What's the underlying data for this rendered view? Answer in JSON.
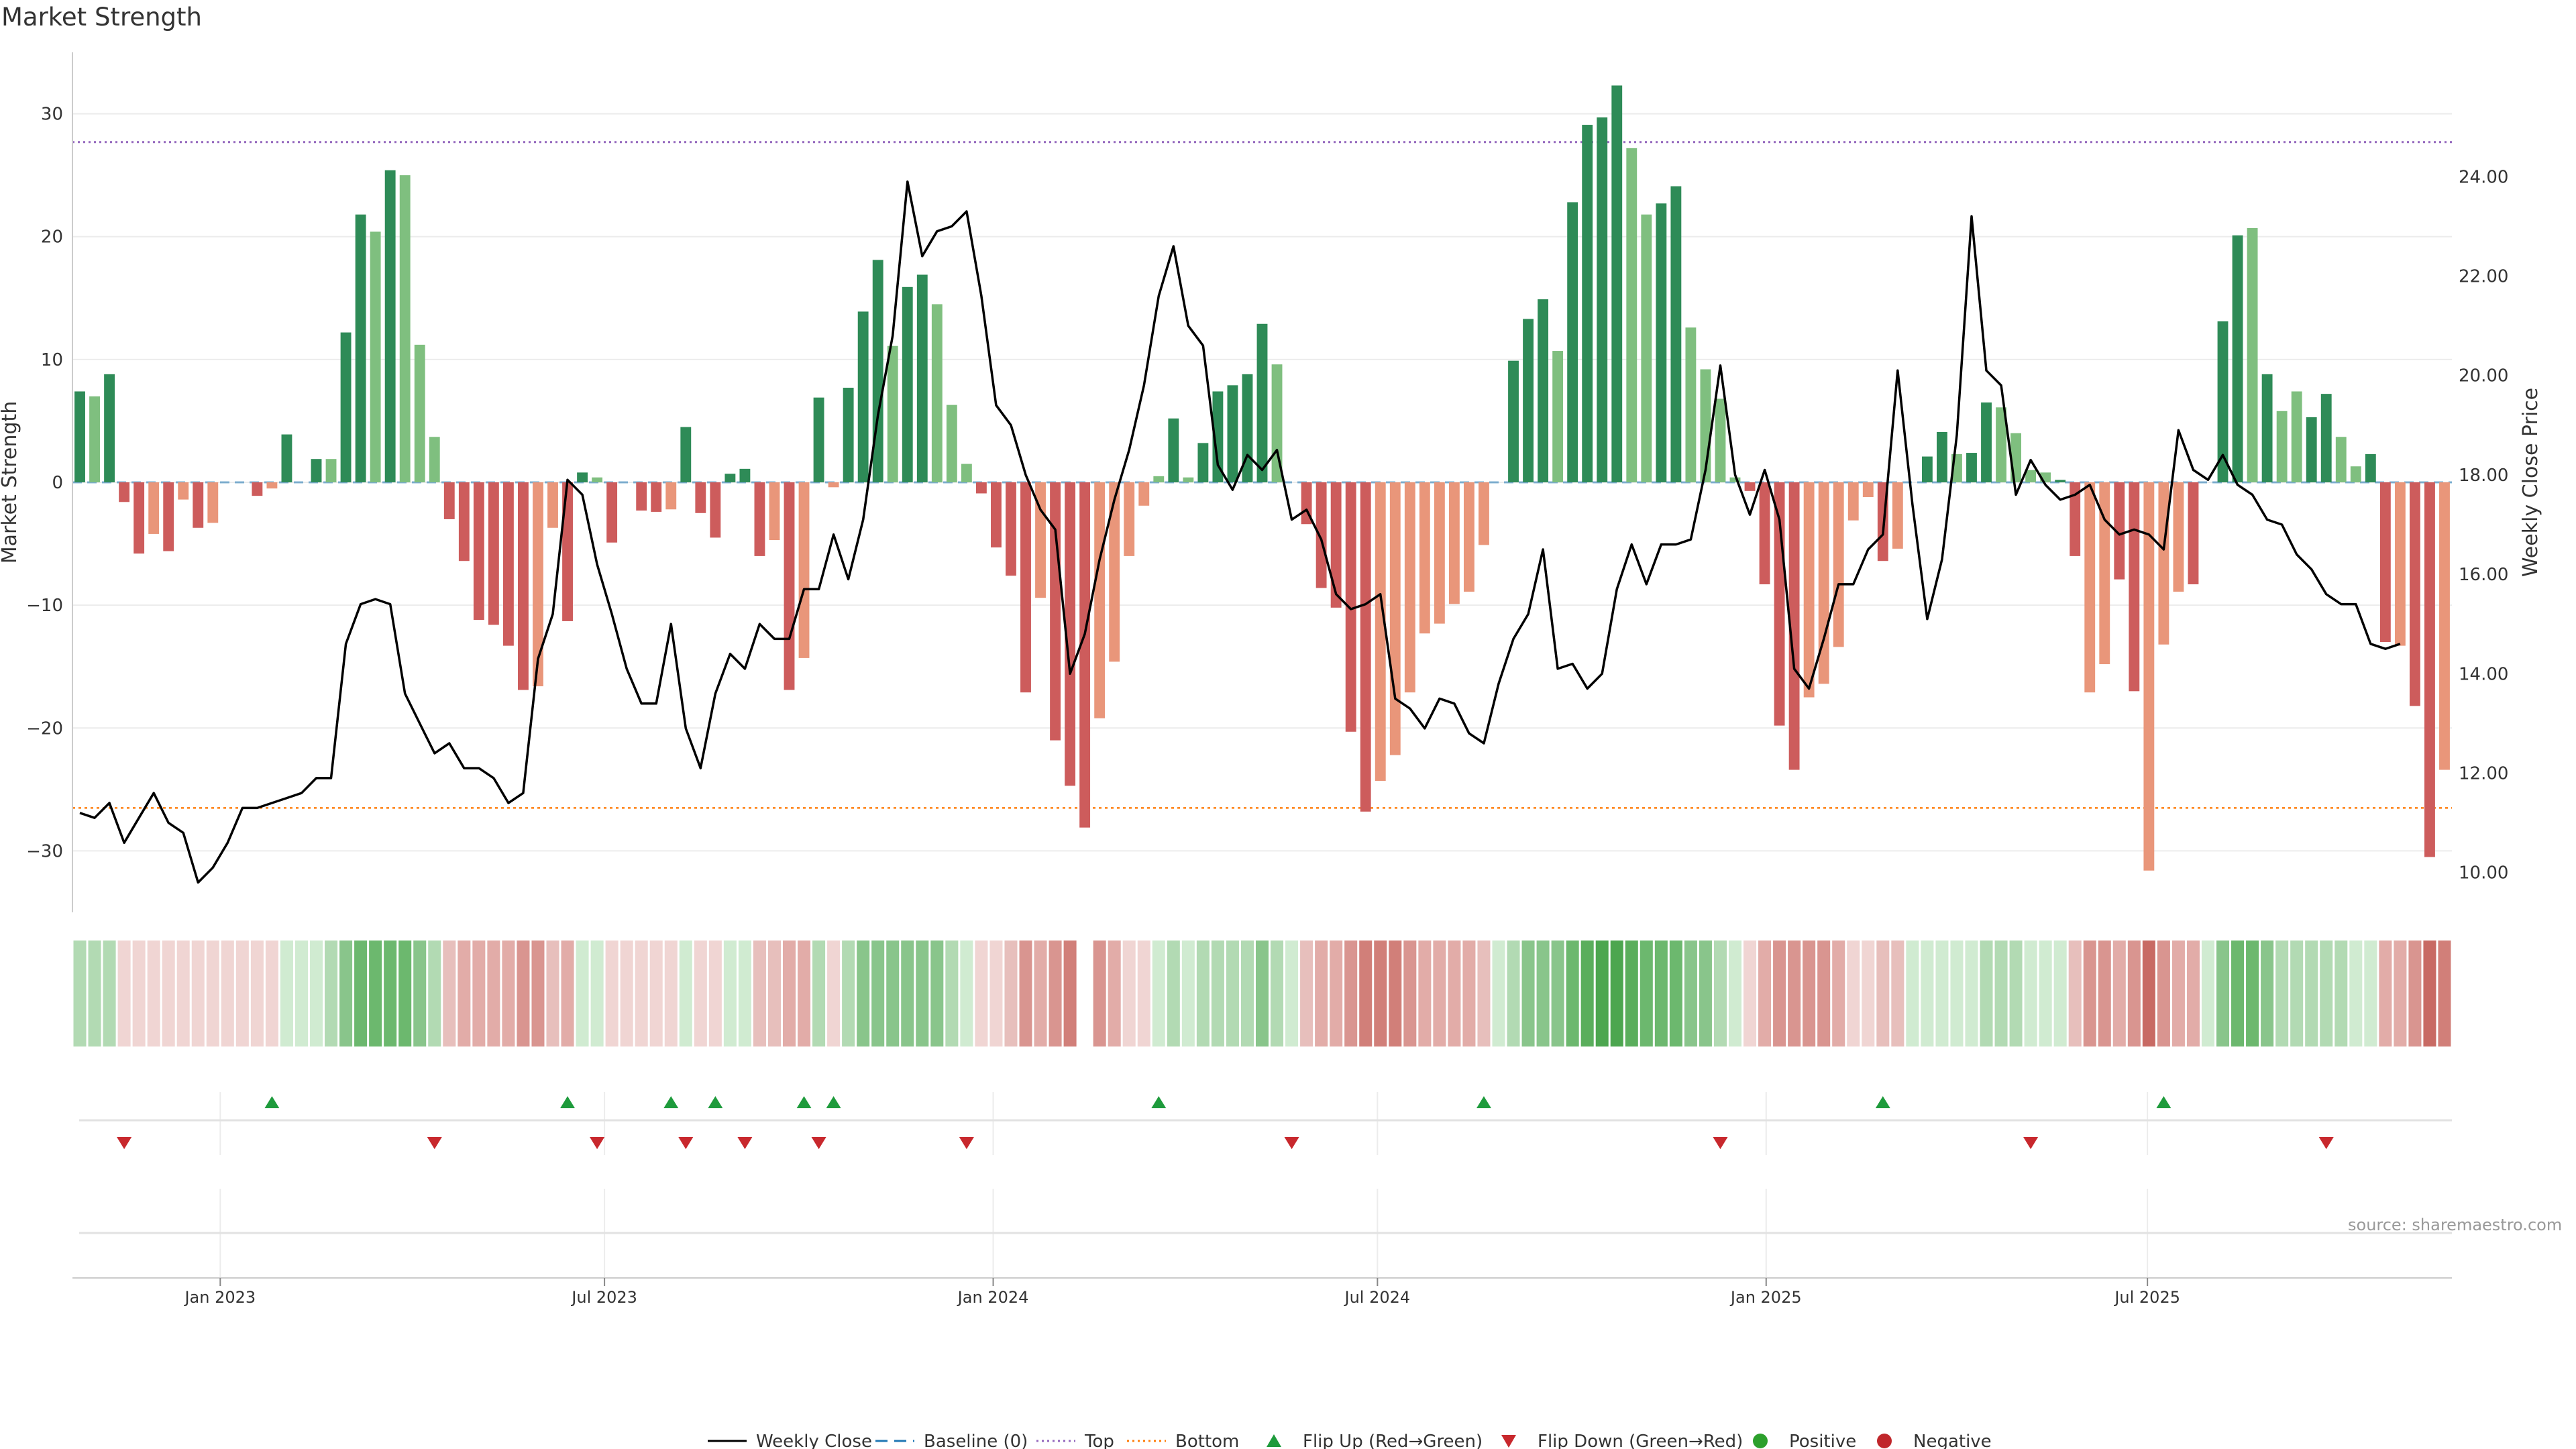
{
  "colors": {
    "strong_green": "#2e8b57",
    "light_green": "#7fbf7f",
    "strong_red": "#cd5c5c",
    "light_red": "#e9967a",
    "price_line": "#000000",
    "baseline": "#1f77b4",
    "top": "#9467bd",
    "bottom": "#ff7f0e",
    "flip_up": "#1e9b3c",
    "flip_down": "#c8282d",
    "positive": "#2ca02c",
    "negative": "#c0262b"
  },
  "chart_data": {
    "type": "bar+line",
    "title": "Market Strength",
    "source": "source: sharemaestro.com",
    "ylabel": "Market Strength",
    "y2label": "Weekly Close Price",
    "ylim": [
      -35,
      35
    ],
    "y2lim": [
      9.2,
      26.5
    ],
    "yticks": [
      "30",
      "20",
      "10",
      "0",
      "−10",
      "−20",
      "−30"
    ],
    "ytick_values": [
      30,
      20,
      10,
      0,
      -10,
      -20,
      -30
    ],
    "y2ticks": [
      "24.00",
      "22.00",
      "20.00",
      "18.00",
      "16.00",
      "14.00",
      "12.00",
      "10.00"
    ],
    "y2tick_values": [
      24,
      22,
      20,
      18,
      16,
      14,
      12,
      10
    ],
    "x_start": "2022-10-24",
    "x_end": "2025-11-10",
    "x_unit": "weeks since first bar",
    "xticks": [
      {
        "label": "Jan 2023",
        "week": 10
      },
      {
        "label": "Jul 2023",
        "week": 36
      },
      {
        "label": "Jan 2024",
        "week": 62.3
      },
      {
        "label": "Jul 2024",
        "week": 88.3
      },
      {
        "label": "Jan 2025",
        "week": 114.6
      },
      {
        "label": "Jul 2025",
        "week": 140.4
      }
    ],
    "top_line": 27.7,
    "bottom_line": -26.5,
    "strength": [
      7.4,
      7,
      8.8,
      -1.6,
      -5.8,
      -4.2,
      -5.6,
      -1.4,
      -3.7,
      -3.3,
      0,
      0,
      -1.1,
      -0.5,
      3.9,
      0,
      1.9,
      1.9,
      12.2,
      21.8,
      20.4,
      25.4,
      25,
      11.2,
      3.7,
      -3,
      -6.4,
      -11.2,
      -11.6,
      -13.3,
      -16.9,
      -16.6,
      -3.7,
      -11.3,
      0.8,
      0.4,
      -4.9,
      0,
      -2.3,
      -2.4,
      -2.2,
      4.5,
      -2.5,
      -4.5,
      0.7,
      1.1,
      -6,
      -4.7,
      -16.9,
      -14.3,
      6.9,
      -0.4,
      7.7,
      13.9,
      18.1,
      11.1,
      15.9,
      16.9,
      14.5,
      6.3,
      1.5,
      -0.9,
      -5.3,
      -7.6,
      -17.1,
      -9.4,
      -21,
      -24.7,
      -28.1,
      -19.2,
      -14.6,
      -6,
      -1.9,
      0.5,
      5.2,
      0.4,
      3.2,
      7.4,
      7.9,
      8.8,
      12.9,
      9.6,
      0,
      -3.4,
      -8.6,
      -10.2,
      -20.3,
      -26.8,
      -24.3,
      -22.2,
      -17.1,
      -12.3,
      -11.5,
      -9.9,
      -8.9,
      -5.1,
      0,
      9.9,
      13.3,
      14.9,
      10.7,
      22.8,
      29.1,
      29.7,
      32.3,
      27.2,
      21.8,
      22.7,
      24.1,
      12.6,
      9.2,
      6.8,
      0.4,
      -0.7,
      -8.3,
      -19.8,
      -23.4,
      -17.5,
      -16.4,
      -13.4,
      -3.1,
      -1.2,
      -6.4,
      -5.4,
      0,
      2.1,
      4.1,
      2.3,
      2.4,
      6.5,
      6.1,
      4,
      1,
      0.8,
      0.2,
      -6,
      -17.1,
      -14.8,
      -7.9,
      -17,
      -31.6,
      -13.2,
      -8.9,
      -8.3,
      0,
      13.1,
      20.1,
      20.7,
      8.8,
      5.8,
      7.4,
      5.3,
      7.2,
      3.7,
      1.3,
      2.3,
      -13,
      -13.3,
      -18.2,
      -30.5,
      -23.4
    ],
    "strength_shade": [
      "strong",
      "light",
      "strong",
      "strong",
      "strong",
      "light",
      "strong",
      "light",
      "strong",
      "light",
      "strong",
      "strong",
      "strong",
      "light",
      "strong",
      "strong",
      "strong",
      "light",
      "strong",
      "strong",
      "light",
      "strong",
      "light",
      "light",
      "light",
      "strong",
      "strong",
      "strong",
      "strong",
      "strong",
      "strong",
      "light",
      "light",
      "strong",
      "strong",
      "light",
      "strong",
      "strong",
      "strong",
      "strong",
      "light",
      "strong",
      "strong",
      "strong",
      "strong",
      "strong",
      "strong",
      "light",
      "strong",
      "light",
      "strong",
      "light",
      "strong",
      "strong",
      "strong",
      "light",
      "strong",
      "strong",
      "light",
      "light",
      "light",
      "strong",
      "strong",
      "strong",
      "strong",
      "light",
      "strong",
      "strong",
      "strong",
      "light",
      "light",
      "light",
      "light",
      "light",
      "strong",
      "light",
      "strong",
      "strong",
      "strong",
      "strong",
      "strong",
      "light",
      "strong",
      "strong",
      "strong",
      "strong",
      "strong",
      "strong",
      "light",
      "light",
      "light",
      "light",
      "light",
      "light",
      "light",
      "light",
      "light",
      "strong",
      "strong",
      "strong",
      "light",
      "strong",
      "strong",
      "strong",
      "strong",
      "light",
      "light",
      "strong",
      "strong",
      "light",
      "light",
      "light",
      "light",
      "strong",
      "strong",
      "strong",
      "strong",
      "light",
      "light",
      "light",
      "light",
      "light",
      "strong",
      "light",
      "strong",
      "strong",
      "strong",
      "light",
      "strong",
      "strong",
      "light",
      "light",
      "light",
      "light",
      "strong",
      "strong",
      "light",
      "light",
      "strong",
      "strong",
      "light",
      "light",
      "light",
      "strong",
      "strong",
      "strong",
      "strong",
      "light",
      "strong",
      "light",
      "light",
      "strong",
      "strong",
      "light",
      "light",
      "strong",
      "strong",
      "light",
      "strong",
      "strong",
      "light"
    ],
    "price_x": [
      0,
      1,
      2,
      3,
      4,
      5,
      6,
      7,
      8,
      9,
      10,
      11,
      12,
      13,
      14,
      15,
      16,
      17,
      18,
      19,
      20,
      21,
      22,
      23,
      24,
      25,
      26,
      27,
      28,
      29,
      30,
      31,
      32,
      33,
      34,
      35,
      36,
      37,
      38,
      39,
      40,
      41,
      42,
      43,
      44,
      45,
      46,
      47,
      48,
      49,
      50,
      51,
      52,
      53,
      54,
      55,
      56,
      57,
      58,
      59,
      60,
      61,
      62,
      63,
      64,
      65,
      66,
      67,
      68,
      69,
      70,
      71,
      72,
      73,
      74,
      75,
      76,
      77,
      78,
      79,
      80,
      81,
      82,
      83,
      84,
      85,
      86,
      87,
      88,
      89,
      90,
      91,
      92,
      93,
      94,
      95,
      96,
      97,
      98,
      99,
      100,
      101,
      102,
      103,
      104,
      105,
      106,
      107,
      108,
      109,
      110,
      111,
      112,
      113,
      114,
      115,
      116,
      117,
      118,
      119,
      120,
      121,
      122,
      123,
      124,
      125,
      126,
      127,
      128,
      129,
      130,
      131,
      132,
      133,
      134,
      135,
      136,
      137,
      138,
      139,
      140,
      141,
      142,
      143,
      144,
      145,
      146,
      147,
      148,
      149,
      150,
      151,
      152,
      153,
      154,
      155,
      156,
      157,
      158,
      159
    ],
    "price": [
      11.2,
      11.1,
      11.4,
      10.6,
      11.1,
      11.6,
      11,
      10.8,
      9.8,
      10.1,
      10.6,
      11.3,
      11.3,
      11.4,
      11.5,
      11.6,
      11.9,
      11.9,
      14.6,
      15.4,
      15.5,
      15.4,
      13.6,
      13,
      12.4,
      12.6,
      12.1,
      12.1,
      11.9,
      11.4,
      11.6,
      14.3,
      15.2,
      17.9,
      17.6,
      16.2,
      15.2,
      14.1,
      13.4,
      13.4,
      15,
      12.9,
      12.1,
      13.6,
      14.4,
      14.1,
      15,
      14.7,
      14.7,
      15.7,
      15.7,
      16.8,
      15.9,
      17.1,
      19.2,
      20.8,
      23.9,
      22.4,
      22.9,
      23,
      23.3,
      21.6,
      19.4,
      19,
      18,
      17.3,
      16.9,
      14,
      14.8,
      16.3,
      17.5,
      18.5,
      19.8,
      21.6,
      22.6,
      21,
      20.6,
      18.2,
      17.7,
      18.4,
      18.1,
      18.5,
      17.1,
      17.3,
      16.7,
      15.6,
      15.3,
      15.4,
      15.6,
      13.5,
      13.3,
      12.9,
      13.5,
      13.4,
      12.8,
      12.6,
      13.8,
      14.7,
      15.2,
      16.5,
      14.1,
      14.2,
      13.7,
      14,
      15.7,
      16.6,
      15.8,
      16.6,
      16.6,
      16.7,
      18.1,
      20.2,
      18,
      17.2,
      18.1,
      17.1,
      14.1,
      13.7,
      14.7,
      15.8,
      15.8,
      16.5,
      16.8,
      20.1,
      17.4,
      15.1,
      16.3,
      18.8,
      23.2,
      20.1,
      19.8,
      17.6,
      18.3,
      17.8,
      17.5,
      17.6,
      17.8,
      17.1,
      16.8,
      16.9,
      16.8,
      16.5,
      18.9,
      18.1,
      17.9,
      18.4,
      17.8,
      17.6,
      17.1,
      17,
      16.4,
      16.1,
      15.6,
      15.4,
      15.4,
      14.6,
      14.5,
      14.6
    ]
  },
  "ribbon": {
    "colors": [
      "#b2dab3",
      "#b2dab3",
      "#b2dab3",
      "#f0d5d3",
      "#f0d5d3",
      "#f0d5d3",
      "#f0d5d3",
      "#f0d5d3",
      "#f0d5d3",
      "#f0d5d3",
      "#f0d5d3",
      "#f0d5d3",
      "#f0d5d3",
      "#f0d5d3",
      "#d0ebd1",
      "#d0ebd1",
      "#d0ebd1",
      "#b2dab3",
      "#89c58b",
      "#6cb86e",
      "#6cb86e",
      "#6cb86e",
      "#6cb86e",
      "#89c58b",
      "#b2dab3",
      "#e7bfbc",
      "#e2aca8",
      "#e2aca8",
      "#e2aca8",
      "#e2aca8",
      "#d99590",
      "#d99590",
      "#e7bfbc",
      "#e2aca8",
      "#d0ebd1",
      "#d0ebd1",
      "#f0d5d3",
      "#f0d5d3",
      "#f0d5d3",
      "#f0d5d3",
      "#f0d5d3",
      "#d0ebd1",
      "#f0d5d3",
      "#f0d5d3",
      "#d0ebd1",
      "#d0ebd1",
      "#e7bfbc",
      "#e7bfbc",
      "#e2aca8",
      "#e2aca8",
      "#b2dab3",
      "#f0d5d3",
      "#b2dab3",
      "#89c58b",
      "#89c58b",
      "#89c58b",
      "#89c58b",
      "#89c58b",
      "#89c58b",
      "#b2dab3",
      "#d0ebd1",
      "#f0d5d3",
      "#f0d5d3",
      "#e7bfbc",
      "#d99590",
      "#e2aca8",
      "#d99590",
      "#d17f79",
      "#d17f79",
      "#d99590",
      "#e2aca8",
      "#f0d5d3",
      "#f0d5d3",
      "#d0ebd1",
      "#b2dab3",
      "#d0ebd1",
      "#b2dab3",
      "#b2dab3",
      "#b2dab3",
      "#b2dab3",
      "#89c58b",
      "#b2dab3",
      "#d0ebd1",
      "#e7bfbc",
      "#e2aca8",
      "#e2aca8",
      "#d99590",
      "#d17f79",
      "#d17f79",
      "#d17f79",
      "#d99590",
      "#e2aca8",
      "#e2aca8",
      "#e2aca8",
      "#e2aca8",
      "#e7bfbc",
      "#d0ebd1",
      "#b2dab3",
      "#89c58b",
      "#89c58b",
      "#89c58b",
      "#6cb86e",
      "#5aae5c",
      "#4ca64f",
      "#4ca64f",
      "#5aae5c",
      "#6cb86e",
      "#6cb86e",
      "#6cb86e",
      "#89c58b",
      "#89c58b",
      "#b2dab3",
      "#d0ebd1",
      "#f0d5d3",
      "#e2aca8",
      "#d99590",
      "#d99590",
      "#d99590",
      "#d99590",
      "#e2aca8",
      "#f0d5d3",
      "#f0d5d3",
      "#e7bfbc",
      "#e7bfbc",
      "#d0ebd1",
      "#d0ebd1",
      "#d0ebd1",
      "#d0ebd1",
      "#d0ebd1",
      "#b2dab3",
      "#b2dab3",
      "#b2dab3",
      "#d0ebd1",
      "#d0ebd1",
      "#d0ebd1",
      "#e7bfbc",
      "#d99590",
      "#d99590",
      "#e2aca8",
      "#d99590",
      "#c86a64",
      "#d99590",
      "#e2aca8",
      "#e2aca8",
      "#d0ebd1",
      "#89c58b",
      "#6cb86e",
      "#6cb86e",
      "#89c58b",
      "#b2dab3",
      "#b2dab3",
      "#b2dab3",
      "#b2dab3",
      "#b2dab3",
      "#d0ebd1",
      "#d0ebd1",
      "#e2aca8",
      "#e2aca8",
      "#d99590",
      "#c86a64",
      "#d17f79"
    ],
    "gap_week": 68
  },
  "flips": {
    "up": [
      13,
      33,
      40,
      43,
      49,
      51,
      73,
      95,
      122,
      141
    ],
    "down": [
      3,
      24,
      35,
      41,
      45,
      50,
      60,
      82,
      111,
      132,
      152
    ]
  },
  "legend": {
    "items": [
      {
        "label": "Weekly Close",
        "kind": "line",
        "color": "#000000"
      },
      {
        "label": "Baseline (0)",
        "kind": "dash",
        "color": "#1f77b4"
      },
      {
        "label": "Top",
        "kind": "dot",
        "color": "#9467bd"
      },
      {
        "label": "Bottom",
        "kind": "dot",
        "color": "#ff7f0e"
      },
      {
        "label": "Flip Up (Red→Green)",
        "kind": "tri-up",
        "color": "#1e9b3c"
      },
      {
        "label": "Flip Down (Green→Red)",
        "kind": "tri-down",
        "color": "#c8282d"
      },
      {
        "label": "Positive",
        "kind": "circle",
        "color": "#2ca02c"
      },
      {
        "label": "Negative",
        "kind": "circle",
        "color": "#c0262b"
      }
    ]
  }
}
